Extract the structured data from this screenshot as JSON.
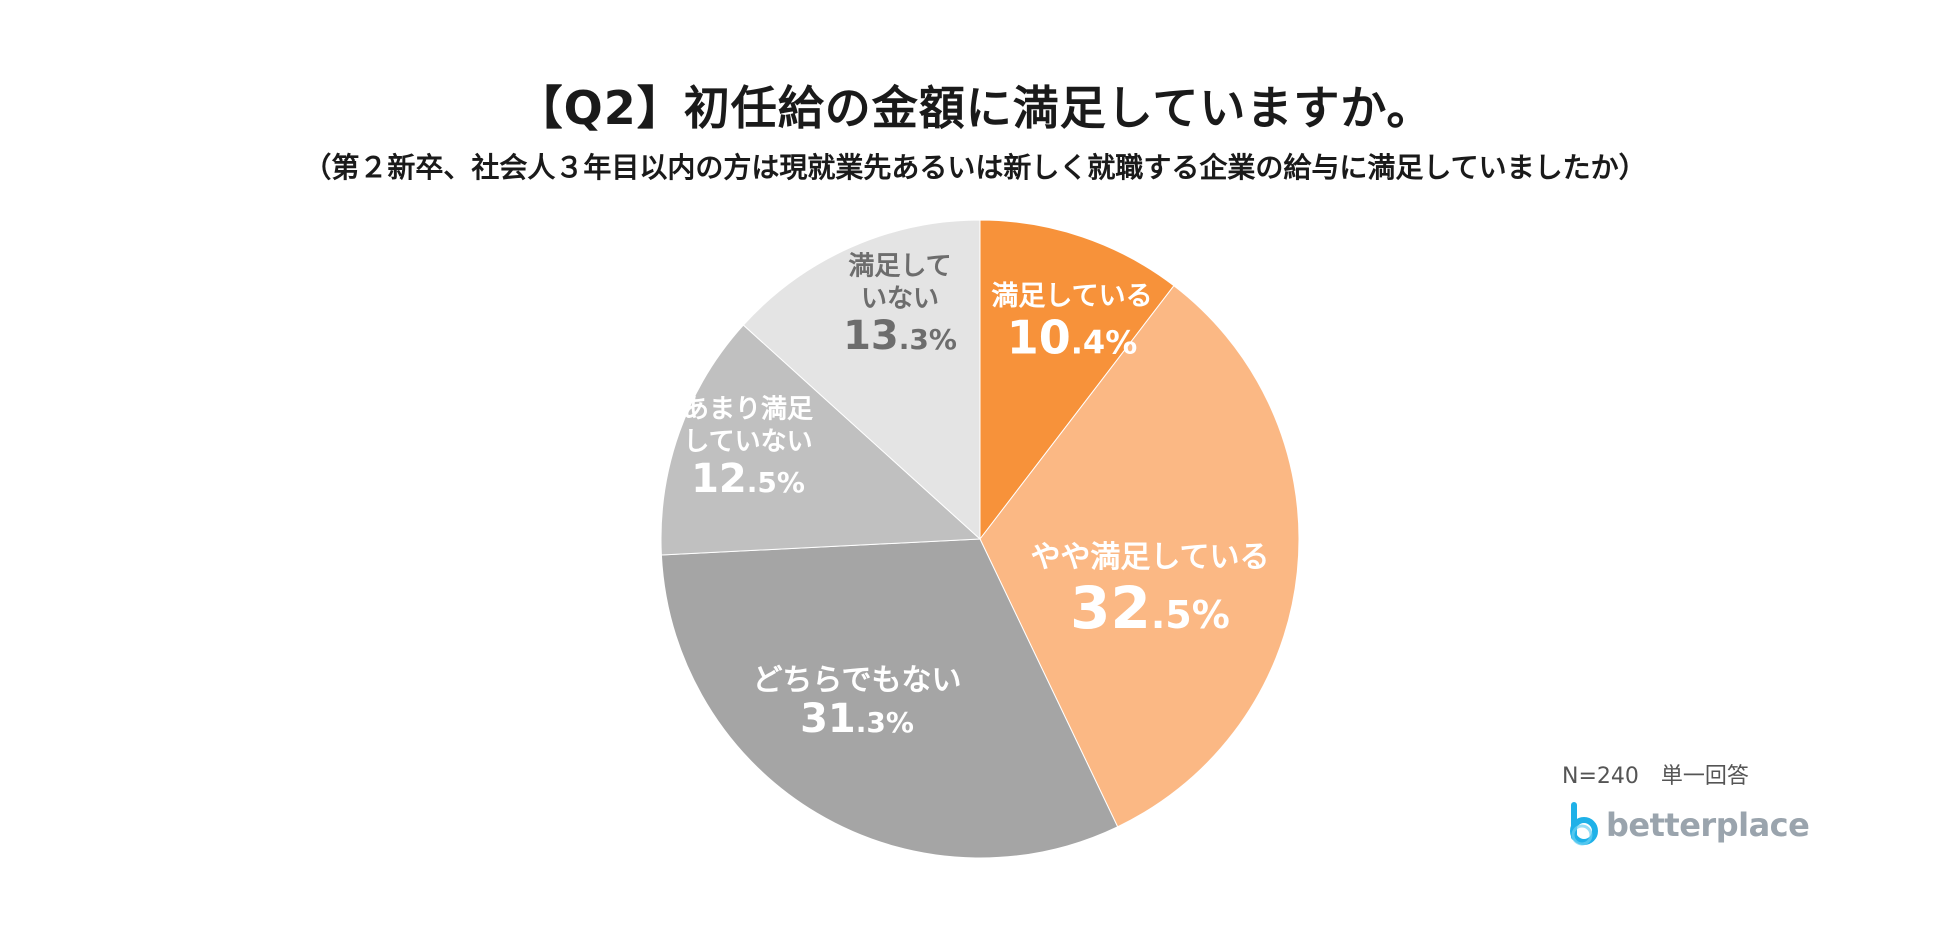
{
  "chart_data": {
    "type": "pie",
    "title": "【Q2】初任給の金額に満足していますか。",
    "subtitle": "（第２新卒、社会人３年目以内の方は現就業先あるいは新しく就職する企業の給与に満足していましたか）",
    "slices": [
      {
        "label_lines": [
          "満足している"
        ],
        "value": 10.4,
        "int": "10",
        "dec": ".4%",
        "color": "#f7923a",
        "text_color": "#ffffff"
      },
      {
        "label_lines": [
          "やや満足している"
        ],
        "value": 32.5,
        "int": "32",
        "dec": ".5%",
        "color": "#fbb884",
        "text_color": "#ffffff"
      },
      {
        "label_lines": [
          "どちらでもない"
        ],
        "value": 31.3,
        "int": "31",
        "dec": ".3%",
        "color": "#a5a5a5",
        "text_color": "#ffffff"
      },
      {
        "label_lines": [
          "あまり満足",
          "していない"
        ],
        "value": 12.5,
        "int": "12",
        "dec": ".5%",
        "color": "#c0c0c0",
        "text_color": "#ffffff"
      },
      {
        "label_lines": [
          "満足して",
          "いない"
        ],
        "value": 13.3,
        "int": "13",
        "dec": ".3%",
        "color": "#e4e4e4",
        "text_color": "#6d6d6d"
      }
    ]
  },
  "footnote": "N=240　単一回答",
  "logo": {
    "text": "betterplace",
    "color": "#1fb1e8"
  }
}
